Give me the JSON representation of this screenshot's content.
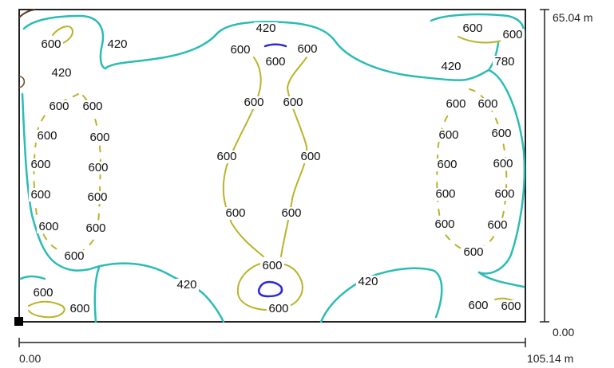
{
  "plan": {
    "colors": {
      "low_contour": "#2bbcb4",
      "mid_contour": "#b9b42a",
      "high_contour": "#2b2bd6",
      "outline": "#222222",
      "label": "#111111"
    },
    "dimensions": {
      "width_start": "0.00",
      "width_end": "105.14 m",
      "height_start": "0.00",
      "height_end": "65.04 m"
    },
    "contour_values": {
      "low": "420",
      "mid": "600",
      "high": "780"
    },
    "labels": [
      {
        "value": "600",
        "level": "mid"
      },
      {
        "value": "420",
        "level": "low"
      },
      {
        "value": "420",
        "level": "low"
      },
      {
        "value": "600",
        "level": "mid"
      },
      {
        "value": "600",
        "level": "mid"
      },
      {
        "value": "600",
        "level": "mid"
      },
      {
        "value": "600",
        "level": "mid"
      },
      {
        "value": "600",
        "level": "mid"
      },
      {
        "value": "600",
        "level": "mid"
      },
      {
        "value": "600",
        "level": "mid"
      },
      {
        "value": "600",
        "level": "mid"
      },
      {
        "value": "600",
        "level": "mid"
      },
      {
        "value": "600",
        "level": "mid"
      },
      {
        "value": "600",
        "level": "mid"
      },
      {
        "value": "600",
        "level": "mid"
      },
      {
        "value": "600",
        "level": "mid"
      },
      {
        "value": "420",
        "level": "low"
      },
      {
        "value": "600",
        "level": "mid"
      },
      {
        "value": "600",
        "level": "mid"
      },
      {
        "value": "420",
        "level": "low"
      },
      {
        "value": "600",
        "level": "mid"
      },
      {
        "value": "600",
        "level": "mid"
      },
      {
        "value": "780",
        "level": "high"
      },
      {
        "value": "600",
        "level": "mid"
      },
      {
        "value": "600",
        "level": "mid"
      },
      {
        "value": "600",
        "level": "mid"
      },
      {
        "value": "600",
        "level": "mid"
      },
      {
        "value": "600",
        "level": "mid"
      },
      {
        "value": "600",
        "level": "mid"
      },
      {
        "value": "600",
        "level": "mid"
      },
      {
        "value": "420",
        "level": "low"
      },
      {
        "value": "600",
        "level": "mid"
      },
      {
        "value": "600",
        "level": "mid"
      },
      {
        "value": "420",
        "level": "low"
      },
      {
        "value": "600",
        "level": "mid"
      },
      {
        "value": "600",
        "level": "mid"
      },
      {
        "value": "600",
        "level": "mid"
      },
      {
        "value": "600",
        "level": "mid"
      },
      {
        "value": "600",
        "level": "mid"
      },
      {
        "value": "600",
        "level": "mid"
      },
      {
        "value": "600",
        "level": "mid"
      },
      {
        "value": "600",
        "level": "mid"
      },
      {
        "value": "600",
        "level": "mid"
      },
      {
        "value": "600",
        "level": "mid"
      },
      {
        "value": "600",
        "level": "mid"
      },
      {
        "value": "600",
        "level": "mid"
      },
      {
        "value": "600",
        "level": "mid"
      },
      {
        "value": "600",
        "level": "mid"
      },
      {
        "value": "600",
        "level": "mid"
      },
      {
        "value": "600",
        "level": "mid"
      },
      {
        "value": "600",
        "level": "mid"
      }
    ]
  }
}
